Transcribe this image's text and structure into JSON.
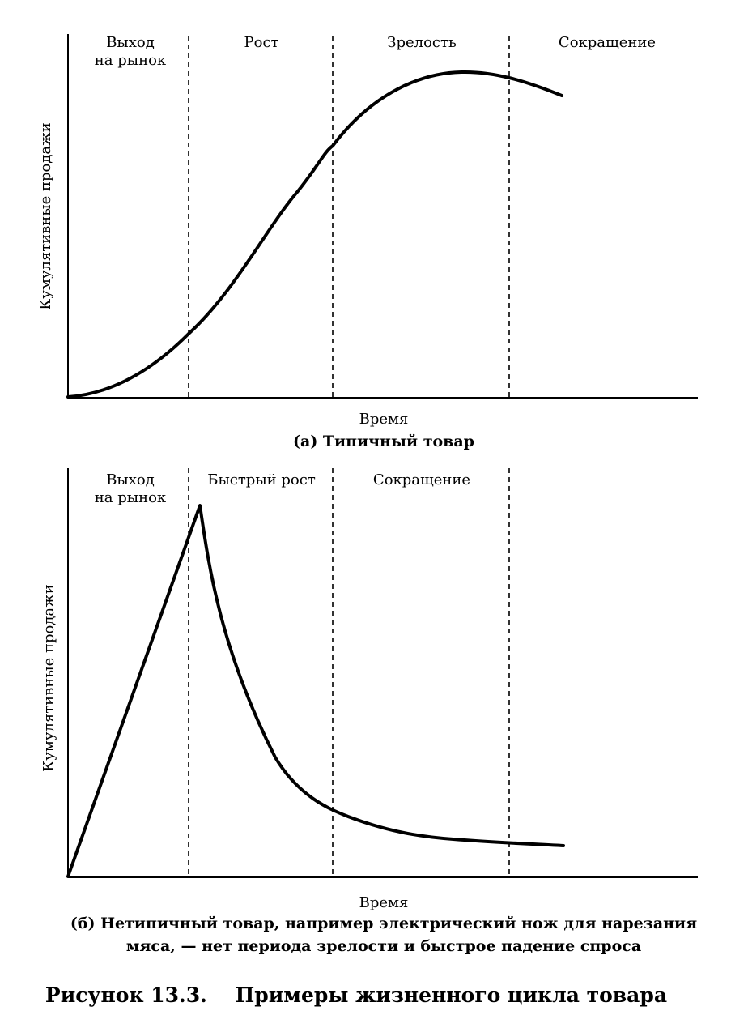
{
  "figure_title": "Рисунок 13.3.    Примеры жизненного цикла товара",
  "panels": [
    {
      "id": "a",
      "ylabel": "Кумулятивные продажи",
      "xlabel": "Время",
      "caption_lines": [
        "(а) Типичный товар"
      ],
      "stages": [
        {
          "lines": [
            "Выход",
            "на рынок"
          ]
        },
        {
          "lines": [
            "Рост"
          ]
        },
        {
          "lines": [
            "Зрелость"
          ]
        },
        {
          "lines": [
            "Сокращение"
          ]
        }
      ]
    },
    {
      "id": "b",
      "ylabel": "Кумулятивные продажи",
      "xlabel": "Время",
      "caption_lines": [
        "(б) Нетипичный товар, например электрический нож для нарезания",
        "мяса, — нет периода зрелости и быстрое падение спроса"
      ],
      "stages": [
        {
          "lines": [
            "Выход",
            "на рынок"
          ]
        },
        {
          "lines": [
            "Быстрый рост"
          ]
        },
        {
          "lines": [
            "Сокращение"
          ]
        },
        {
          "lines": []
        }
      ]
    }
  ]
}
